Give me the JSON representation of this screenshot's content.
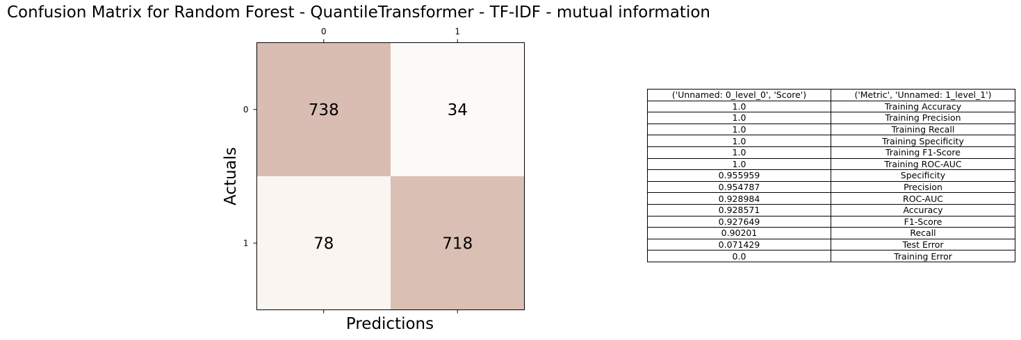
{
  "chart_data": [
    {
      "type": "heatmap",
      "title": "Confusion Matrix for Random Forest - QuantileTransformer - TF-IDF - mutual information",
      "xlabel": "Predictions",
      "ylabel": "Actuals",
      "x_ticks": [
        "0",
        "1"
      ],
      "y_ticks": [
        "0",
        "1"
      ],
      "matrix": [
        [
          738,
          34
        ],
        [
          78,
          718
        ]
      ],
      "colors": {
        "high": "#d9bdb3",
        "low": "#fdf9f6"
      }
    },
    {
      "type": "table",
      "columns": [
        "('Unnamed: 0_level_0', 'Score')",
        "('Metric', 'Unnamed: 1_level_1')"
      ],
      "rows": [
        [
          "1.0",
          "Training Accuracy"
        ],
        [
          "1.0",
          "Training Precision"
        ],
        [
          "1.0",
          "Training Recall"
        ],
        [
          "1.0",
          "Training Specificity"
        ],
        [
          "1.0",
          "Training F1-Score"
        ],
        [
          "1.0",
          "Training ROC-AUC"
        ],
        [
          "0.955959",
          "Specificity"
        ],
        [
          "0.954787",
          "Precision"
        ],
        [
          "0.928984",
          "ROC-AUC"
        ],
        [
          "0.928571",
          "Accuracy"
        ],
        [
          "0.927649",
          "F1-Score"
        ],
        [
          "0.90201",
          "Recall"
        ],
        [
          "0.071429",
          "Test Error"
        ],
        [
          "0.0",
          "Training Error"
        ]
      ]
    }
  ]
}
